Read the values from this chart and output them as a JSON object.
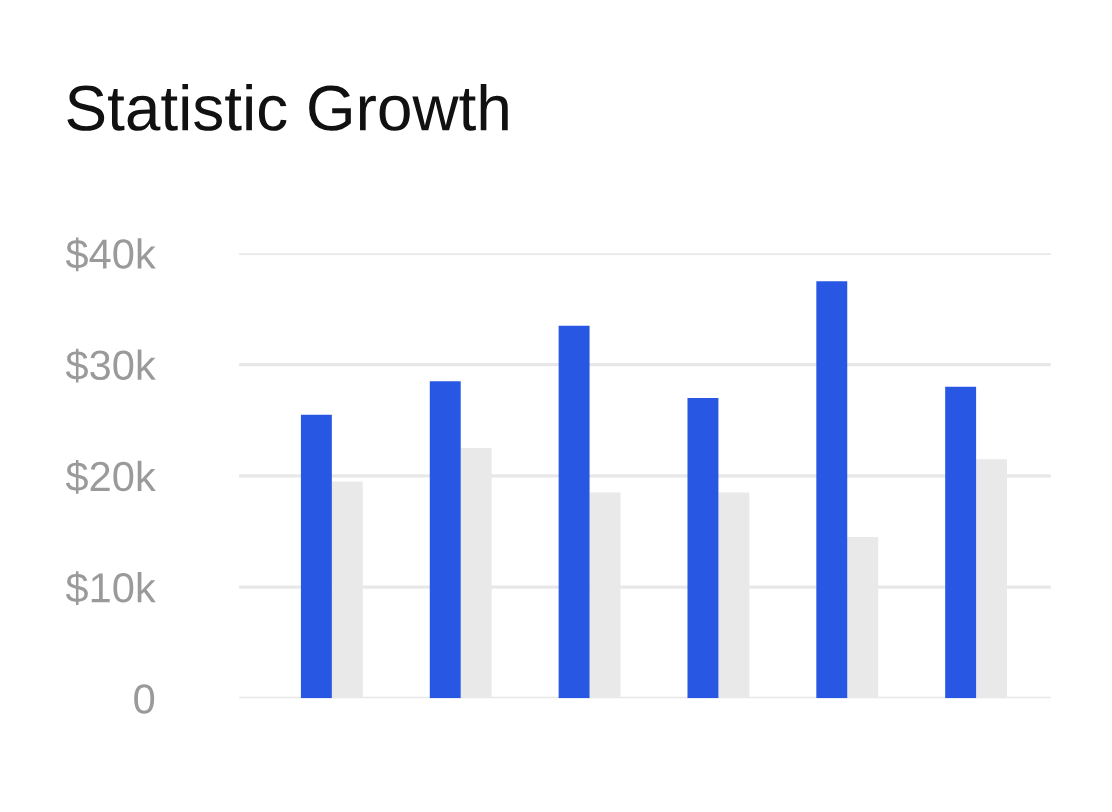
{
  "chart_data": {
    "type": "bar",
    "title": "Statistic Growth",
    "categories": [
      null,
      null,
      null,
      null,
      null,
      null
    ],
    "series": [
      {
        "color": "#2857e3",
        "values": [
          25500,
          28500,
          33500,
          27000,
          37500,
          28000
        ]
      },
      {
        "color": "#e9e9e9",
        "values": [
          19500,
          22500,
          18500,
          18500,
          14500,
          21500
        ]
      }
    ],
    "ylim": [
      0,
      40000
    ],
    "yticks": [
      {
        "value": 0,
        "label": "0"
      },
      {
        "value": 10000,
        "label": "$10k"
      },
      {
        "value": 20000,
        "label": "$20k"
      },
      {
        "value": 30000,
        "label": "$30k"
      },
      {
        "value": 40000,
        "label": "$40k"
      }
    ],
    "grid": "y",
    "legend": false
  }
}
